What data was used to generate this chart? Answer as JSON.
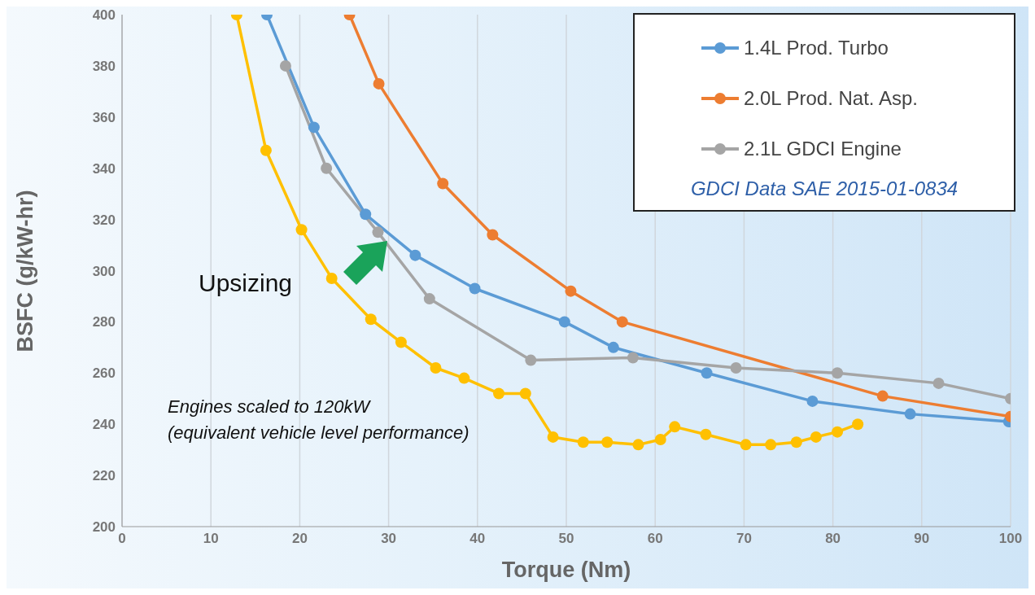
{
  "chart_data": {
    "type": "line",
    "xlabel": "Torque (Nm)",
    "ylabel": "BSFC (g/kW-hr)",
    "xlim": [
      0,
      100
    ],
    "xticks": [
      0,
      10,
      20,
      30,
      40,
      50,
      60,
      70,
      80,
      90,
      100
    ],
    "ylim": [
      200,
      400
    ],
    "yticks": [
      200,
      220,
      240,
      260,
      280,
      300,
      320,
      340,
      360,
      380,
      400
    ],
    "grid": "x",
    "legend": "top right",
    "marker": "circle",
    "line_style": "solid",
    "series": [
      {
        "name": "1.4L Prod. Turbo",
        "color": "#5b9bd5",
        "x": [
          16.3,
          21.6,
          27.4,
          33.0,
          39.7,
          49.8,
          55.3,
          65.8,
          77.7,
          88.7,
          99.8
        ],
        "values": [
          400,
          356,
          322,
          306,
          293,
          280,
          270,
          260,
          249,
          244,
          241
        ]
      },
      {
        "name": "2.0L Prod. Nat. Asp.",
        "color": "#ed7d31",
        "x": [
          25.6,
          28.9,
          36.1,
          41.7,
          50.5,
          56.3,
          85.6,
          100
        ],
        "values": [
          400,
          373,
          334,
          314,
          292,
          280,
          251,
          243
        ]
      },
      {
        "name": "2.1L GDCI Engine",
        "color": "#a5a5a5",
        "x": [
          18.4,
          23.0,
          28.8,
          34.6,
          46.0,
          57.5,
          69.1,
          80.5,
          91.9,
          100
        ],
        "values": [
          380,
          340,
          315,
          289,
          265,
          266,
          262,
          260,
          256,
          250
        ]
      },
      {
        "color": "#ffc000",
        "x": [
          12.9,
          16.2,
          20.2,
          23.6,
          28.0,
          31.4,
          35.3,
          38.5,
          42.4,
          45.4,
          48.5,
          51.9,
          54.6,
          58.1,
          60.6,
          62.2,
          65.7,
          70.2,
          73.0,
          75.9,
          78.1,
          80.5,
          82.8
        ],
        "values": [
          400,
          347,
          316,
          297,
          281,
          272,
          262,
          258,
          252,
          252,
          235,
          233,
          233,
          232,
          234,
          239,
          236,
          232,
          232,
          233,
          235,
          237,
          240
        ]
      }
    ],
    "annotations": [
      "Upsizing",
      "GDCI Data SAE 2015-01-0834",
      "Engines scaled to 120kW\n(equivalent vehicle level performance)"
    ]
  }
}
